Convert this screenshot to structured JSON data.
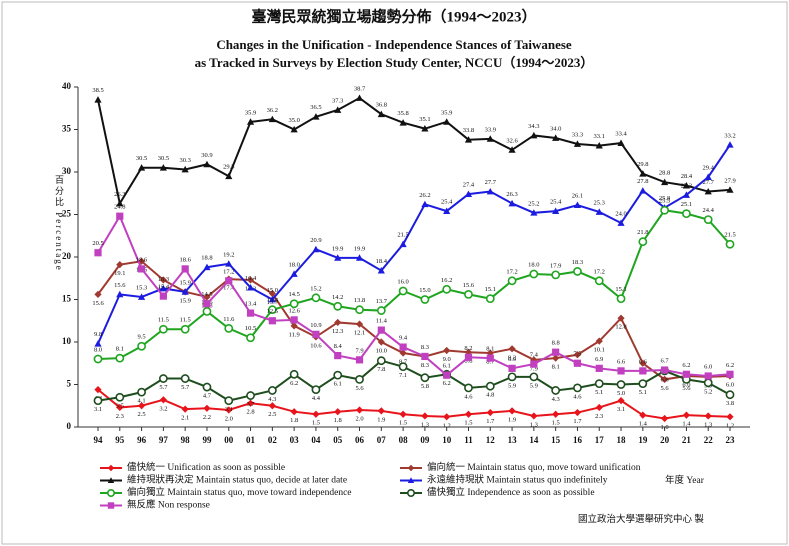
{
  "chart_data": {
    "type": "line",
    "title": "臺灣民眾統獨立場趨勢分佈（1994～2023）",
    "subtitle": [
      "Changes in the Unification - Independence Stances of Taiwanese",
      "as Tracked in Surveys by Election Study Center, NCCU（1994～2023）"
    ],
    "y_label": "百分比 Percentage",
    "x_label": "年度 Year",
    "source": "國立政治大學選舉研究中心 製",
    "categories": [
      "94",
      "95",
      "96",
      "97",
      "98",
      "99",
      "00",
      "01",
      "02",
      "03",
      "04",
      "05",
      "06",
      "07",
      "08",
      "09",
      "10",
      "11",
      "12",
      "13",
      "14",
      "15",
      "16",
      "17",
      "18",
      "19",
      "20",
      "21",
      "22",
      "23"
    ],
    "ylim": [
      0,
      40
    ],
    "yticks": [
      0,
      5,
      10,
      15,
      20,
      25,
      30,
      35,
      40
    ],
    "series": [
      {
        "name": "儘快統一 Unification as soon as possible",
        "color": "#e8141b",
        "marker": "diamond",
        "values": [
          4.4,
          2.3,
          2.5,
          3.2,
          2.1,
          2.2,
          2.0,
          2.8,
          2.5,
          1.8,
          1.5,
          1.8,
          2.0,
          1.9,
          1.5,
          1.3,
          1.2,
          1.5,
          1.7,
          1.9,
          1.3,
          1.5,
          1.7,
          2.3,
          3.1,
          1.4,
          1.0,
          1.4,
          1.3,
          1.2
        ]
      },
      {
        "name": "偏向統一 Maintain status quo, move toward unification",
        "color": "#a0392f",
        "marker": "diamond",
        "values": [
          15.6,
          19.1,
          19.5,
          17.3,
          15.9,
          15.3,
          17.4,
          17.3,
          15.7,
          11.9,
          10.6,
          12.3,
          12.1,
          10.0,
          8.7,
          8.3,
          9.0,
          8.8,
          8.7,
          9.2,
          7.9,
          8.1,
          8.5,
          10.1,
          12.8,
          7.5,
          5.6,
          6.0,
          5.9,
          6.0
        ]
      },
      {
        "name": "維持現狀再決定 Maintain status quo, decide at later date",
        "color": "#111111",
        "marker": "triangle",
        "values": [
          38.5,
          26.3,
          30.5,
          30.5,
          30.3,
          30.9,
          29.5,
          35.9,
          36.2,
          35.0,
          36.5,
          37.3,
          38.7,
          36.8,
          35.8,
          35.1,
          35.9,
          33.8,
          33.9,
          32.6,
          34.3,
          34.0,
          33.3,
          33.1,
          33.4,
          29.8,
          28.8,
          28.4,
          27.7,
          27.9
        ]
      },
      {
        "name": "永遠維持現狀 Maintain status quo indefinitely",
        "color": "#1c1ce0",
        "marker": "triangle",
        "values": [
          9.8,
          15.6,
          15.3,
          16.3,
          15.9,
          18.8,
          19.2,
          16.4,
          15.0,
          18.0,
          20.9,
          19.9,
          19.9,
          18.4,
          21.5,
          26.2,
          25.4,
          27.4,
          27.7,
          26.3,
          25.2,
          25.4,
          26.1,
          25.3,
          24.0,
          27.8,
          25.8,
          27.3,
          29.4,
          33.2
        ]
      },
      {
        "name": "偏向獨立 Maintain status quo, move toward independence",
        "color": "#1fa51f",
        "marker": "circle",
        "values": [
          8.0,
          8.1,
          9.5,
          11.5,
          11.5,
          13.6,
          11.6,
          10.5,
          13.8,
          14.5,
          15.2,
          14.2,
          13.8,
          13.7,
          16.0,
          15.0,
          16.2,
          15.6,
          15.1,
          17.2,
          18.0,
          17.9,
          18.3,
          17.2,
          15.1,
          21.8,
          25.5,
          25.1,
          24.4,
          21.5
        ]
      },
      {
        "name": "儘快獨立 Independence as soon as possible",
        "color": "#1e4d1e",
        "marker": "circle",
        "values": [
          3.1,
          3.5,
          4.1,
          5.7,
          5.7,
          4.7,
          3.1,
          3.7,
          4.3,
          6.2,
          4.4,
          6.1,
          5.6,
          7.8,
          7.1,
          5.8,
          6.2,
          4.6,
          4.8,
          5.9,
          5.9,
          4.3,
          4.6,
          5.1,
          5.0,
          5.1,
          6.6,
          5.6,
          5.2,
          3.8
        ]
      },
      {
        "name": "無反應 Non response",
        "color": "#c040c0",
        "marker": "square",
        "values": [
          20.5,
          24.8,
          18.6,
          15.4,
          18.6,
          14.5,
          17.2,
          13.4,
          12.5,
          12.6,
          10.9,
          8.4,
          7.9,
          11.4,
          9.4,
          8.3,
          6.1,
          8.2,
          8.1,
          6.9,
          7.4,
          8.8,
          7.5,
          6.9,
          6.6,
          6.6,
          6.7,
          6.2,
          6.0,
          6.2
        ]
      }
    ]
  }
}
